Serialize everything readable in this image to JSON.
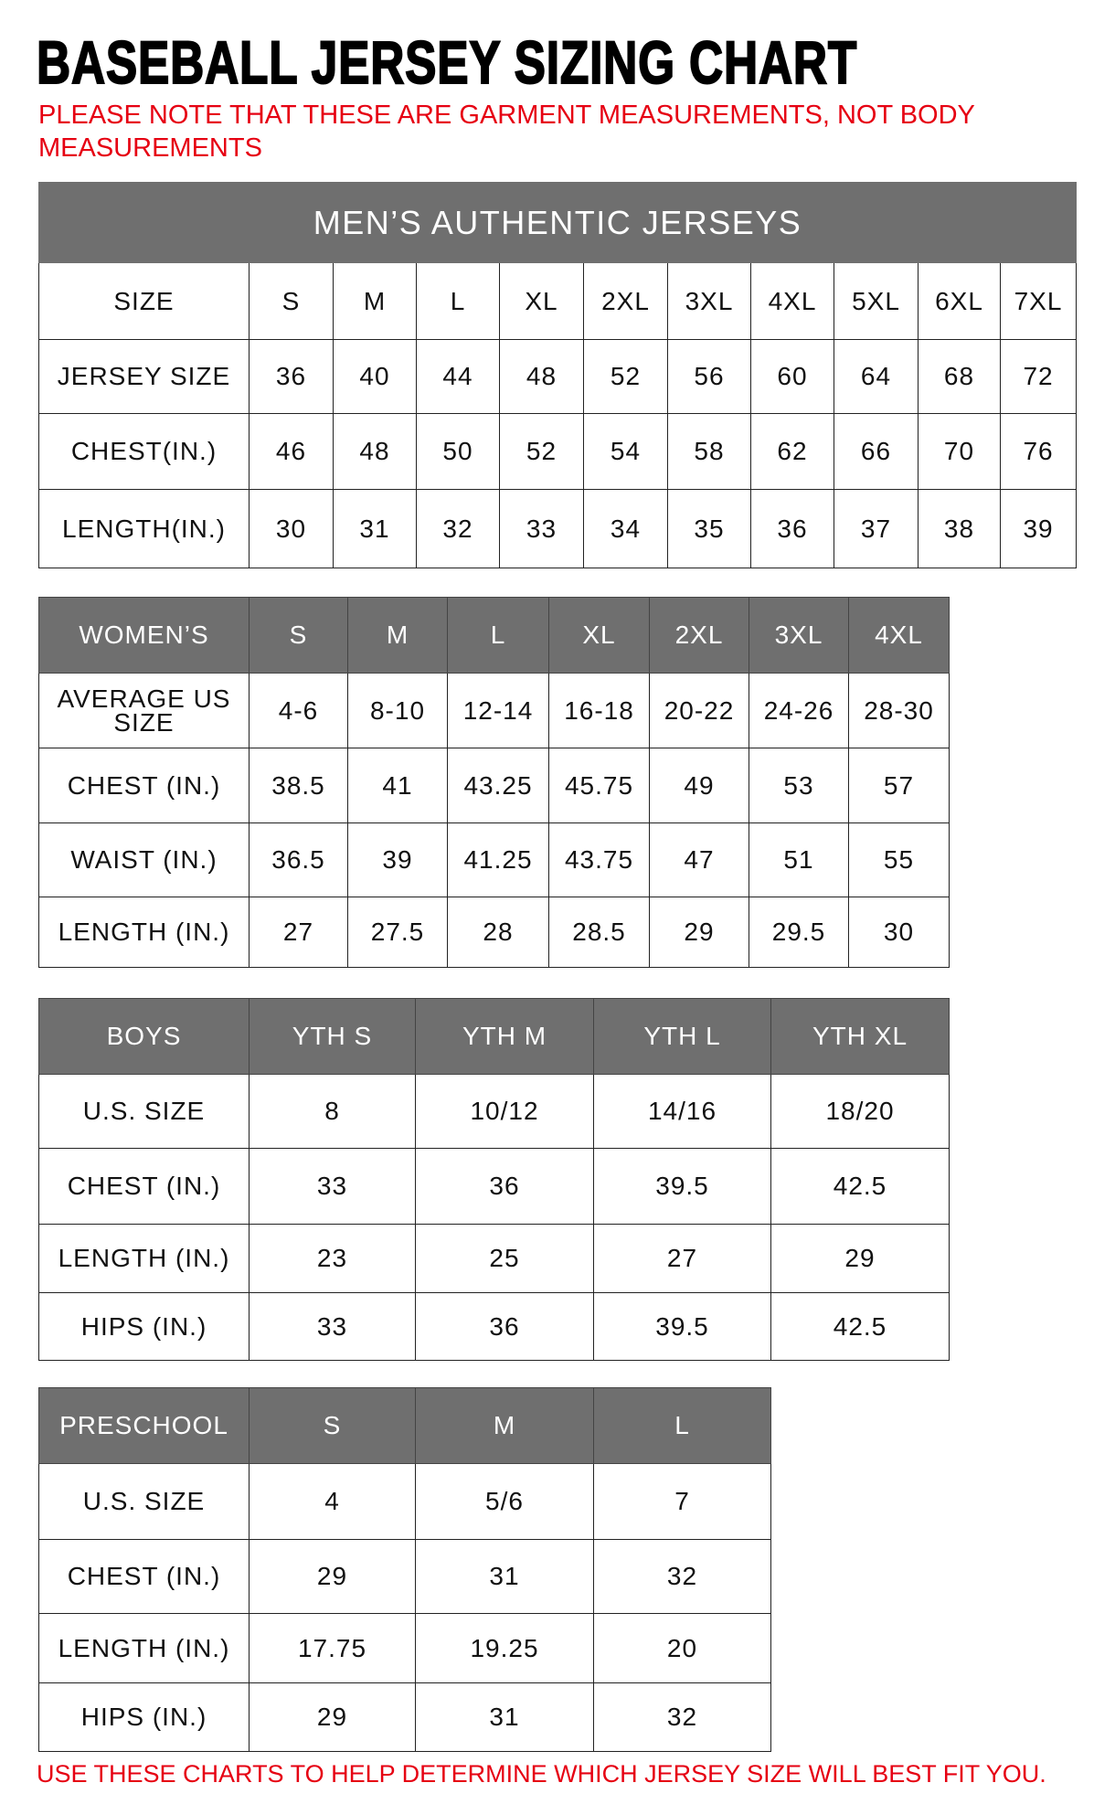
{
  "title": "BASEBALL JERSEY SIZING CHART",
  "note": "PLEASE NOTE THAT THESE ARE GARMENT MEASUREMENTS, NOT BODY MEASUREMENTS",
  "footer": "USE THESE CHARTS TO HELP DETERMINE WHICH JERSEY SIZE WILL BEST FIT YOU.",
  "colors": {
    "header_gray": "#6f6f6f",
    "note_red": "#e60012"
  },
  "tables": [
    {
      "id": "mens",
      "banner": "MEN’S AUTHENTIC JERSEYS",
      "header_gray_row": false,
      "rows": [
        [
          "SIZE",
          "S",
          "M",
          "L",
          "XL",
          "2XL",
          "3XL",
          "4XL",
          "5XL",
          "6XL",
          "7XL"
        ],
        [
          "JERSEY SIZE",
          "36",
          "40",
          "44",
          "48",
          "52",
          "56",
          "60",
          "64",
          "68",
          "72"
        ],
        [
          "CHEST(IN.)",
          "46",
          "48",
          "50",
          "52",
          "54",
          "58",
          "62",
          "66",
          "70",
          "76"
        ],
        [
          "LENGTH(IN.)",
          "30",
          "31",
          "32",
          "33",
          "34",
          "35",
          "36",
          "37",
          "38",
          "39"
        ]
      ]
    },
    {
      "id": "womens",
      "header_gray_row": true,
      "rows": [
        [
          "WOMEN’S",
          "S",
          "M",
          "L",
          "XL",
          "2XL",
          "3XL",
          "4XL"
        ],
        [
          "AVERAGE US SIZE",
          "4-6",
          "8-10",
          "12-14",
          "16-18",
          "20-22",
          "24-26",
          "28-30"
        ],
        [
          "CHEST (IN.)",
          "38.5",
          "41",
          "43.25",
          "45.75",
          "49",
          "53",
          "57"
        ],
        [
          "WAIST (IN.)",
          "36.5",
          "39",
          "41.25",
          "43.75",
          "47",
          "51",
          "55"
        ],
        [
          "LENGTH (IN.)",
          "27",
          "27.5",
          "28",
          "28.5",
          "29",
          "29.5",
          "30"
        ]
      ]
    },
    {
      "id": "boys",
      "header_gray_row": true,
      "rows": [
        [
          "BOYS",
          "YTH S",
          "YTH M",
          "YTH L",
          "YTH XL"
        ],
        [
          "U.S. SIZE",
          "8",
          "10/12",
          "14/16",
          "18/20"
        ],
        [
          "CHEST (IN.)",
          "33",
          "36",
          "39.5",
          "42.5"
        ],
        [
          "LENGTH (IN.)",
          "23",
          "25",
          "27",
          "29"
        ],
        [
          "HIPS (IN.)",
          "33",
          "36",
          "39.5",
          "42.5"
        ]
      ]
    },
    {
      "id": "preschool",
      "header_gray_row": true,
      "rows": [
        [
          "PRESCHOOL",
          "S",
          "M",
          "L"
        ],
        [
          "U.S. SIZE",
          "4",
          "5/6",
          "7"
        ],
        [
          "CHEST (IN.)",
          "29",
          "31",
          "32"
        ],
        [
          "LENGTH (IN.)",
          "17.75",
          "19.25",
          "20"
        ],
        [
          "HIPS (IN.)",
          "29",
          "31",
          "32"
        ]
      ]
    }
  ]
}
